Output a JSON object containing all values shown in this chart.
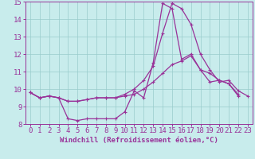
{
  "xlabel": "Windchill (Refroidissement éolien,°C)",
  "ylabel": "",
  "xlim": [
    -0.5,
    23.5
  ],
  "ylim": [
    8,
    15
  ],
  "yticks": [
    8,
    9,
    10,
    11,
    12,
    13,
    14,
    15
  ],
  "xticks": [
    0,
    1,
    2,
    3,
    4,
    5,
    6,
    7,
    8,
    9,
    10,
    11,
    12,
    13,
    14,
    15,
    16,
    17,
    18,
    19,
    20,
    21,
    22,
    23
  ],
  "background_color": "#c8ecec",
  "line_color": "#993399",
  "spine_color": "#993399",
  "grid_color": "#99cccc",
  "line1_y": [
    9.8,
    9.5,
    9.6,
    9.5,
    8.3,
    8.2,
    8.3,
    8.3,
    8.3,
    8.3,
    8.7,
    9.9,
    9.5,
    11.5,
    14.9,
    14.6,
    11.7,
    12.0,
    11.1,
    10.4,
    10.5,
    10.3,
    9.6,
    null
  ],
  "line2_y": [
    9.8,
    9.5,
    9.6,
    9.5,
    9.3,
    9.3,
    9.4,
    9.5,
    9.5,
    9.5,
    9.6,
    9.7,
    10.0,
    10.4,
    10.9,
    11.4,
    11.6,
    11.9,
    11.1,
    10.9,
    10.5,
    10.3,
    9.7,
    null
  ],
  "line3_y": [
    9.8,
    9.5,
    9.6,
    9.5,
    9.3,
    9.3,
    9.4,
    9.5,
    9.5,
    9.5,
    9.7,
    10.0,
    10.5,
    11.3,
    13.2,
    14.9,
    14.6,
    13.7,
    12.0,
    11.1,
    10.4,
    10.5,
    9.9,
    9.6
  ],
  "tick_fontsize": 6.5,
  "xlabel_fontsize": 6.5,
  "marker_size": 3.0,
  "line_width": 0.9
}
